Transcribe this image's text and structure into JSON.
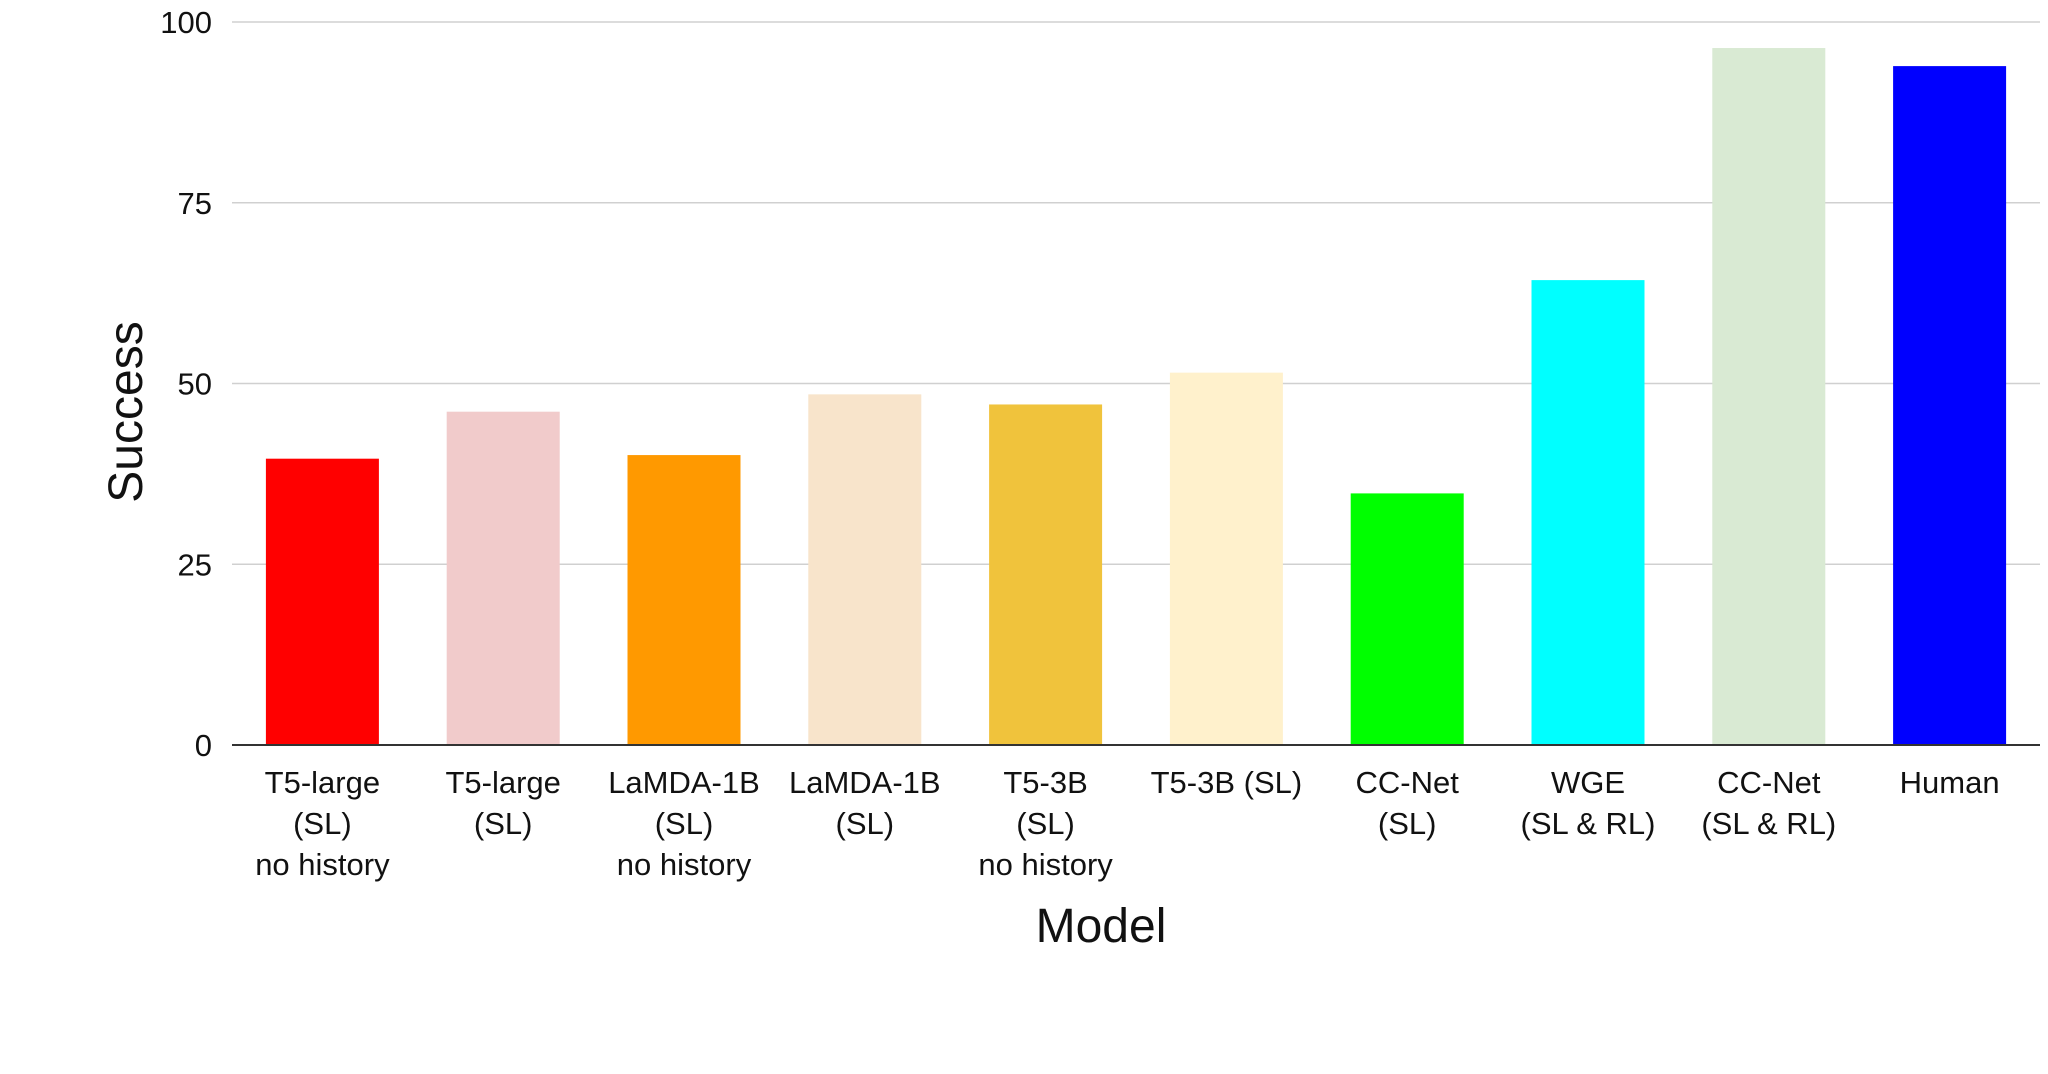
{
  "chart_data": {
    "type": "bar",
    "title": "",
    "xlabel": "Model",
    "ylabel": "Success",
    "ylim": [
      0,
      100
    ],
    "yticks": [
      "0",
      "25",
      "50",
      "75",
      "100"
    ],
    "grid": true,
    "legend": "none",
    "categories": [
      [
        "T5-large",
        "(SL)",
        "no history"
      ],
      [
        "T5-large",
        "(SL)"
      ],
      [
        "LaMDA-1B",
        "(SL)",
        "no history"
      ],
      [
        "LaMDA-1B",
        "(SL)"
      ],
      [
        "T5-3B",
        "(SL)",
        "no history"
      ],
      [
        "T5-3B (SL)"
      ],
      [
        "CC-Net",
        "(SL)"
      ],
      [
        "WGE",
        "(SL & RL)"
      ],
      [
        "CC-Net",
        "(SL & RL)"
      ],
      [
        "Human"
      ]
    ],
    "values": [
      39.6,
      46.1,
      40.1,
      48.5,
      47.1,
      51.5,
      34.8,
      64.3,
      96.4,
      93.9
    ],
    "colors": [
      "#ff0000",
      "#f1cbcb",
      "#ff9900",
      "#f8e4cb",
      "#f0c33c",
      "#fff1cc",
      "#00ff00",
      "#00ffff",
      "#d9ead3",
      "#0000ff"
    ]
  }
}
